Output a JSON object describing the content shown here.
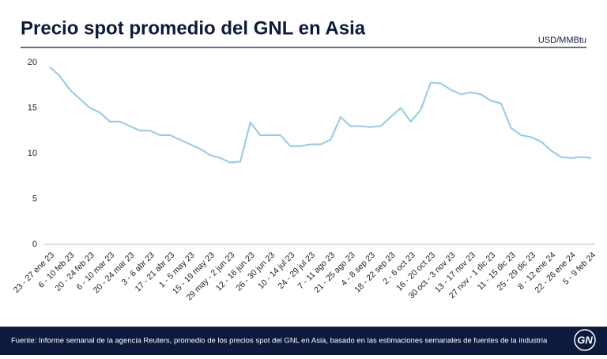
{
  "chart_data": {
    "type": "line",
    "title": "Precio spot promedio del GNL en Asia",
    "y_label": "USD/MMBtu",
    "source": "Fuente: Informe semanal de la agencia Reuters, promedio de los precios spot del GNL en Asia, basado en las estimaciones semanales de fuentes de la industria",
    "logo": "GN",
    "categories": [
      "23 - 27 ene 23",
      null,
      "6 - 10 feb 23",
      null,
      "20 - 24 feb 23",
      null,
      "6 - 10 mar 23",
      null,
      "20 - 24 mar 23",
      null,
      "3 - 6 abr 23",
      null,
      "17 - 21 abr 23",
      null,
      "1 - 5 may 23",
      null,
      "15 - 19 may 23",
      null,
      "29 may - 2 jun 23",
      null,
      "12 - 16 jun 23",
      null,
      "26 - 30 jun 23",
      null,
      "10 - 14 jul 23",
      null,
      "24 - 29 jul 23",
      null,
      "7 - 11 ago 23",
      null,
      "21 - 25 ago 23",
      null,
      "4 - 8 sep 23",
      null,
      "18 - 22 sep 23",
      null,
      "2 - 6 oct 23",
      null,
      "16 - 20 oct 23",
      null,
      "30 oct - 3 nov 23",
      null,
      "13 - 17 nov 23",
      null,
      "27 nov - 1 dic 23",
      null,
      "11 - 15 dic 23",
      null,
      "25 - 29 dic 23",
      null,
      "8 - 12 ene 24",
      null,
      "22 - 26 ene 24",
      null,
      "5 - 9 feb 24"
    ],
    "series": [
      {
        "name": "Precio spot",
        "color": "#8fcbea",
        "values": [
          19.5,
          18.5,
          17.0,
          16.0,
          15.0,
          14.5,
          13.5,
          13.5,
          13.0,
          12.5,
          12.5,
          12.0,
          12.0,
          11.5,
          11.0,
          10.5,
          9.8,
          9.5,
          9.0,
          9.1,
          13.4,
          12.0,
          12.0,
          12.0,
          10.8,
          10.8,
          11.0,
          11.0,
          11.5,
          14.0,
          13.0,
          13.0,
          12.9,
          13.0,
          14.0,
          15.0,
          13.5,
          14.8,
          17.8,
          17.7,
          17.0,
          16.5,
          16.7,
          16.5,
          15.8,
          15.5,
          12.8,
          12.0,
          11.8,
          11.3,
          10.3,
          9.6,
          9.5,
          9.6,
          9.5
        ]
      }
    ],
    "ylim": [
      0,
      20
    ],
    "yticks": [
      0,
      5,
      10,
      15,
      20
    ],
    "grid": false
  }
}
